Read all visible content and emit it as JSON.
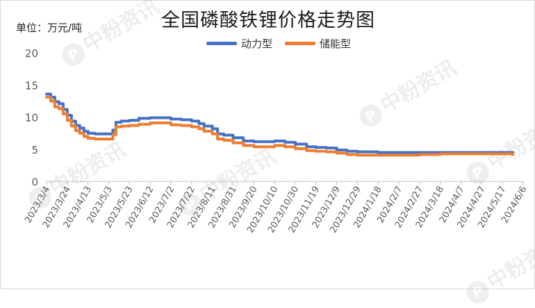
{
  "chart_data": {
    "type": "line",
    "title": "全国磷酸铁锂价格走势图",
    "unit_label": "单位：万元/吨",
    "ylim": [
      0,
      20
    ],
    "yticks": [
      0,
      5,
      10,
      15,
      20
    ],
    "xlim": [
      "2023-03-04",
      "2024-06-06"
    ],
    "xticks": [
      "2023/3/4",
      "2023/3/24",
      "2023/4/13",
      "2023/5/3",
      "2023/5/23",
      "2023/6/12",
      "2023/7/2",
      "2023/7/22",
      "2023/8/11",
      "2023/8/31",
      "2023/9/20",
      "2023/10/10",
      "2023/10/30",
      "2023/11/19",
      "2023/12/9",
      "2023/12/29",
      "2024/1/18",
      "2024/2/7",
      "2024/2/27",
      "2024/3/18",
      "2024/4/7",
      "2024/4/27",
      "2024/5/17",
      "2024/6/6"
    ],
    "grid": false,
    "legend_position": "top",
    "series": [
      {
        "name": "动力型",
        "color": "#4472C4",
        "x": [
          "2023-03-04",
          "2023-03-08",
          "2023-03-12",
          "2023-03-16",
          "2023-03-20",
          "2023-03-24",
          "2023-03-28",
          "2023-04-01",
          "2023-04-05",
          "2023-04-09",
          "2023-04-13",
          "2023-04-20",
          "2023-04-27",
          "2023-05-03",
          "2023-05-07",
          "2023-05-10",
          "2023-05-15",
          "2023-05-23",
          "2023-06-01",
          "2023-06-12",
          "2023-07-02",
          "2023-07-12",
          "2023-07-22",
          "2023-07-29",
          "2023-08-03",
          "2023-08-11",
          "2023-08-16",
          "2023-08-22",
          "2023-08-31",
          "2023-09-10",
          "2023-09-20",
          "2023-10-01",
          "2023-10-10",
          "2023-10-20",
          "2023-10-30",
          "2023-11-10",
          "2023-11-19",
          "2023-11-29",
          "2023-12-09",
          "2023-12-19",
          "2023-12-29",
          "2024-01-18",
          "2024-02-07",
          "2024-02-27",
          "2024-03-18",
          "2024-04-07",
          "2024-04-27",
          "2024-05-17",
          "2024-05-27"
        ],
        "values": [
          13.6,
          13.1,
          12.4,
          12.1,
          11.2,
          10.3,
          9.4,
          8.7,
          8.3,
          7.8,
          7.5,
          7.4,
          7.4,
          7.4,
          8.0,
          9.2,
          9.4,
          9.5,
          9.8,
          9.9,
          9.7,
          9.6,
          9.4,
          9.0,
          8.6,
          8.2,
          7.4,
          7.2,
          6.8,
          6.3,
          6.2,
          6.2,
          6.3,
          6.1,
          5.8,
          5.4,
          5.3,
          5.2,
          4.9,
          4.7,
          4.6,
          4.5,
          4.5,
          4.5,
          4.5,
          4.5,
          4.5,
          4.5,
          4.4
        ]
      },
      {
        "name": "储能型",
        "color": "#ED7D31",
        "x": [
          "2023-03-04",
          "2023-03-08",
          "2023-03-12",
          "2023-03-16",
          "2023-03-20",
          "2023-03-24",
          "2023-03-28",
          "2023-04-01",
          "2023-04-05",
          "2023-04-09",
          "2023-04-13",
          "2023-04-20",
          "2023-04-27",
          "2023-05-03",
          "2023-05-07",
          "2023-05-10",
          "2023-05-15",
          "2023-05-23",
          "2023-06-01",
          "2023-06-12",
          "2023-07-02",
          "2023-07-12",
          "2023-07-22",
          "2023-07-29",
          "2023-08-03",
          "2023-08-11",
          "2023-08-16",
          "2023-08-22",
          "2023-08-31",
          "2023-09-10",
          "2023-09-20",
          "2023-10-01",
          "2023-10-10",
          "2023-10-20",
          "2023-10-30",
          "2023-11-10",
          "2023-11-19",
          "2023-11-29",
          "2023-12-09",
          "2023-12-19",
          "2023-12-29",
          "2024-01-18",
          "2024-02-07",
          "2024-02-27",
          "2024-03-18",
          "2024-04-07",
          "2024-04-27",
          "2024-05-17",
          "2024-05-27"
        ],
        "values": [
          13.1,
          12.5,
          11.6,
          11.3,
          10.5,
          9.5,
          8.6,
          7.9,
          7.5,
          7.0,
          6.7,
          6.6,
          6.6,
          6.6,
          7.3,
          8.5,
          8.6,
          8.7,
          8.9,
          9.1,
          8.8,
          8.7,
          8.5,
          8.2,
          7.8,
          7.4,
          6.6,
          6.4,
          6.0,
          5.6,
          5.4,
          5.4,
          5.6,
          5.4,
          5.1,
          4.8,
          4.7,
          4.6,
          4.4,
          4.2,
          4.1,
          4.1,
          4.1,
          4.2,
          4.3,
          4.3,
          4.3,
          4.3,
          4.2
        ]
      }
    ]
  },
  "watermark": {
    "text": "中粉资讯",
    "logo_glyph": "P"
  }
}
